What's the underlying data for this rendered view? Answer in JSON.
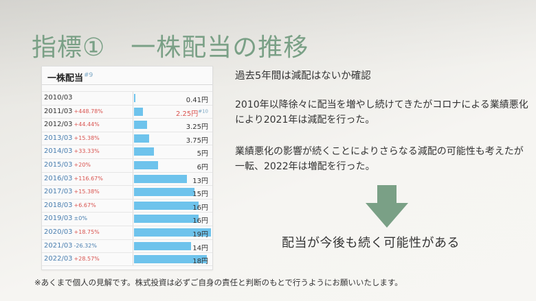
{
  "slide": {
    "title": "指標①　一株配当の推移",
    "heading": "過去5年間は減配はないか確認",
    "paragraph1": "2010年以降徐々に配当を増やし続けてきたがコロナによる業績悪化により2021年は減配を行った。",
    "paragraph2": "業績悪化の影響が続くことによりさらなる減配の可能性も考えたが一転、2022年は増配を行った。",
    "conclusion": "配当が今後も続く可能性がある",
    "disclaimer": "※あくまで個人の見解です。株式投資は必ずご自身の責任と判断のもとで行うようにお願いいたします。",
    "arrow_icon": "arrow-down-icon",
    "colors": {
      "title": "#7aa086",
      "arrow": "#7aa086",
      "bar": "#6ec3ec",
      "increase": "#d9534f",
      "decrease": "#4a7fb0"
    }
  },
  "card": {
    "title": "一株配当",
    "rank": "#9",
    "rows": [
      {
        "year": "2010/03",
        "change": "",
        "value": "0.41円",
        "amount": 0.41,
        "year_color": "dark",
        "change_color": "",
        "value_color": "dark",
        "value_rank": ""
      },
      {
        "year": "2011/03",
        "change": "+448.78%",
        "value": "2.25円",
        "amount": 2.25,
        "year_color": "dark",
        "change_color": "red",
        "value_color": "red",
        "value_rank": "#10"
      },
      {
        "year": "2012/03",
        "change": "+44.44%",
        "value": "3.25円",
        "amount": 3.25,
        "year_color": "dark",
        "change_color": "red",
        "value_color": "dark",
        "value_rank": ""
      },
      {
        "year": "2013/03",
        "change": "+15.38%",
        "value": "3.75円",
        "amount": 3.75,
        "year_color": "blue",
        "change_color": "red",
        "value_color": "dark",
        "value_rank": ""
      },
      {
        "year": "2014/03",
        "change": "+33.33%",
        "value": "5円",
        "amount": 5,
        "year_color": "blue",
        "change_color": "red",
        "value_color": "dark",
        "value_rank": ""
      },
      {
        "year": "2015/03",
        "change": "+20%",
        "value": "6円",
        "amount": 6,
        "year_color": "blue",
        "change_color": "red",
        "value_color": "dark",
        "value_rank": ""
      },
      {
        "year": "2016/03",
        "change": "+116.67%",
        "value": "13円",
        "amount": 13,
        "year_color": "blue",
        "change_color": "red",
        "value_color": "dark",
        "value_rank": ""
      },
      {
        "year": "2017/03",
        "change": "+15.38%",
        "value": "15円",
        "amount": 15,
        "year_color": "blue",
        "change_color": "red",
        "value_color": "dark",
        "value_rank": ""
      },
      {
        "year": "2018/03",
        "change": "+6.67%",
        "value": "16円",
        "amount": 16,
        "year_color": "blue",
        "change_color": "red",
        "value_color": "dark",
        "value_rank": ""
      },
      {
        "year": "2019/03",
        "change": "±0%",
        "value": "16円",
        "amount": 16,
        "year_color": "blue",
        "change_color": "blue",
        "value_color": "dark",
        "value_rank": ""
      },
      {
        "year": "2020/03",
        "change": "+18.75%",
        "value": "19円",
        "amount": 19,
        "year_color": "blue",
        "change_color": "red",
        "value_color": "dark",
        "value_rank": ""
      },
      {
        "year": "2021/03",
        "change": "-26.32%",
        "value": "14円",
        "amount": 14,
        "year_color": "blue",
        "change_color": "blue",
        "value_color": "dark",
        "value_rank": ""
      },
      {
        "year": "2022/03",
        "change": "+28.57%",
        "value": "18円",
        "amount": 18,
        "year_color": "blue",
        "change_color": "red",
        "value_color": "dark",
        "value_rank": ""
      }
    ]
  }
}
